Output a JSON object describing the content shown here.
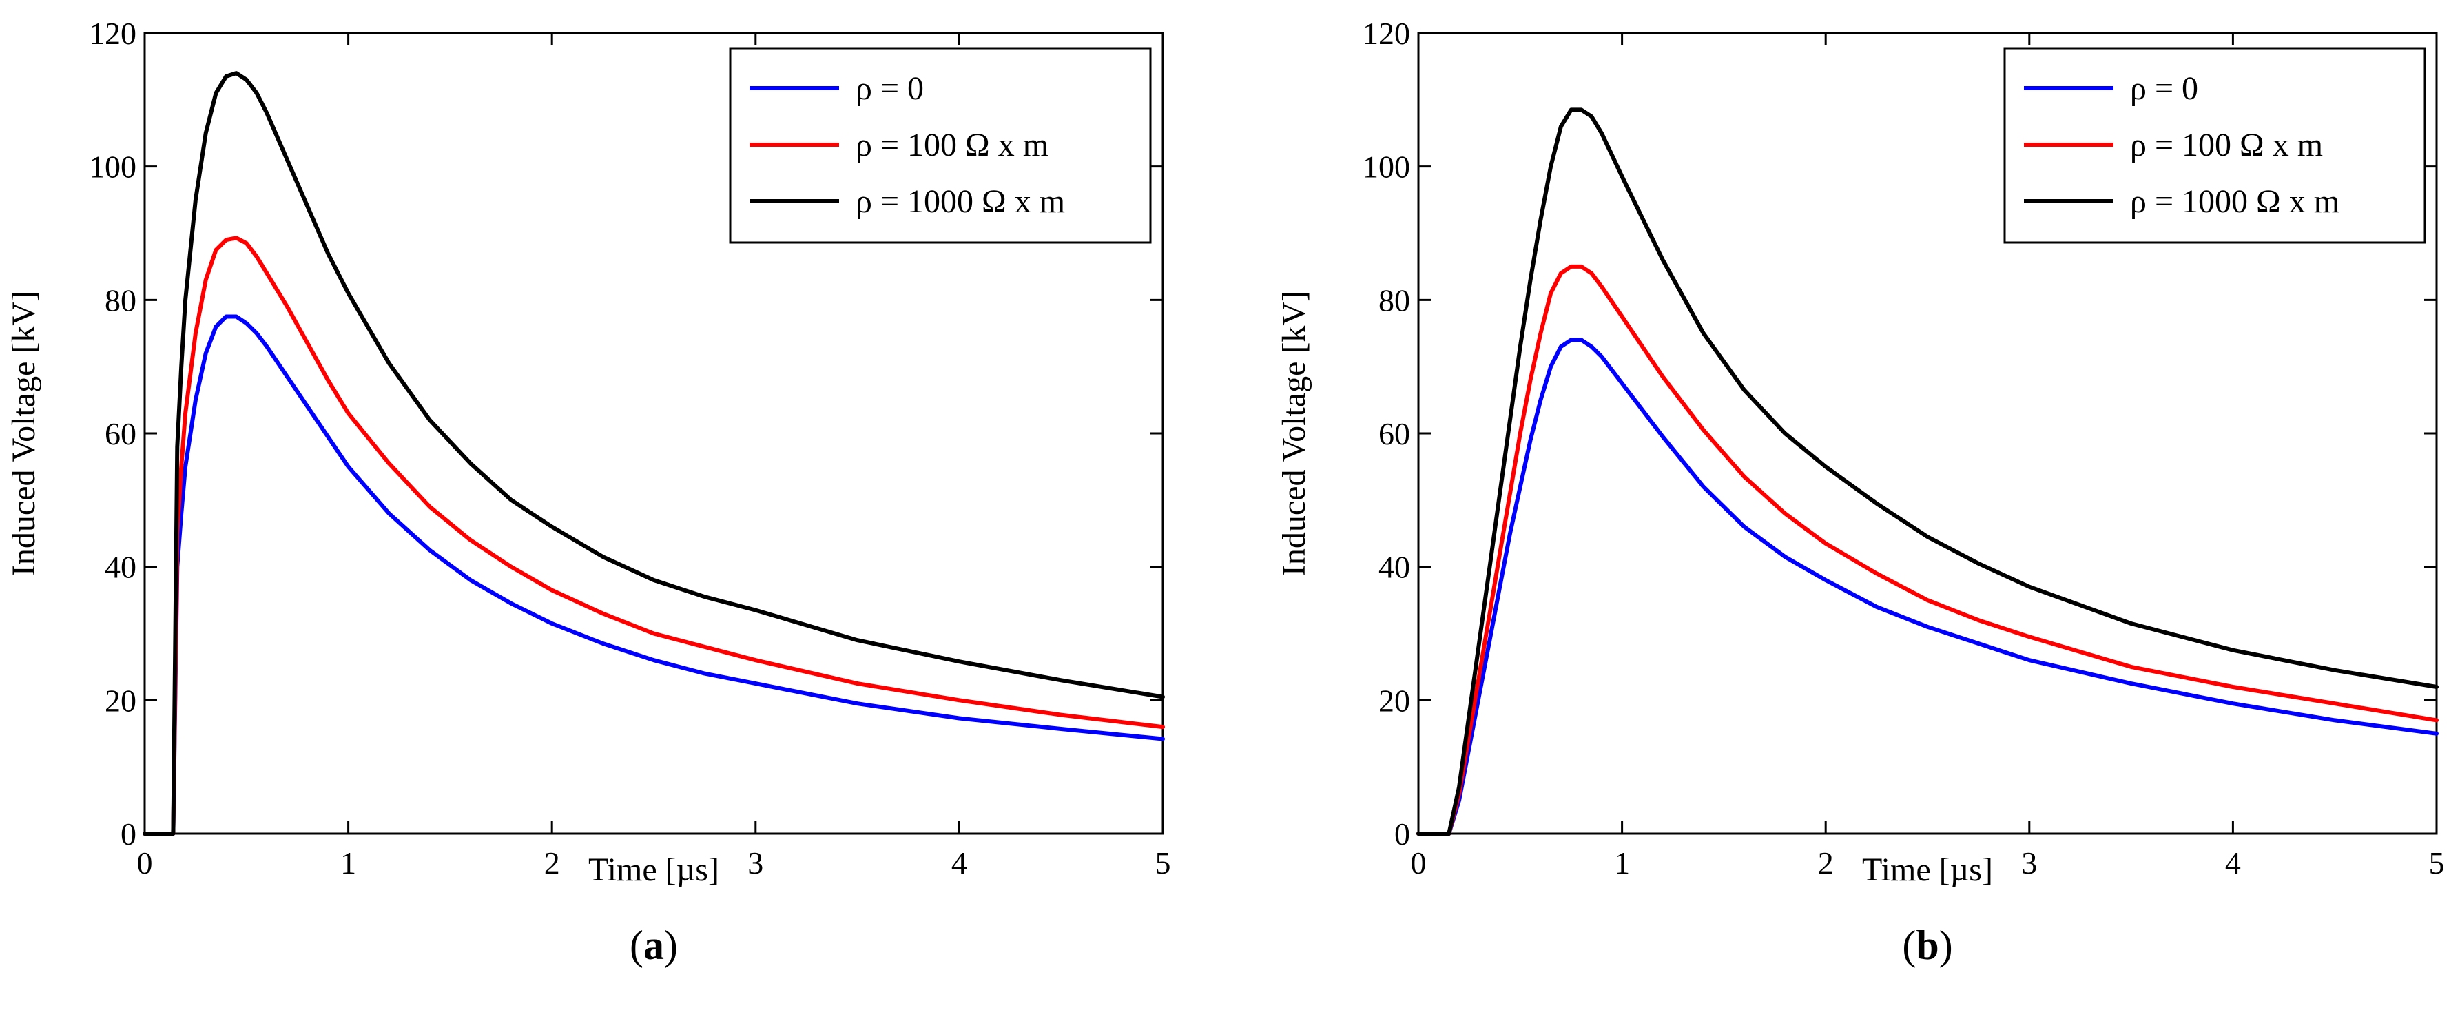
{
  "chart_data": [
    {
      "type": "line",
      "panel_label": "a",
      "xlabel": "Time [µs]",
      "ylabel": "Induced Voltage [kV]",
      "xlim": [
        0,
        5
      ],
      "ylim": [
        0,
        120
      ],
      "xticks": [
        0,
        1,
        2,
        3,
        4,
        5
      ],
      "yticks": [
        0,
        20,
        40,
        60,
        80,
        100,
        120
      ],
      "grid": false,
      "legend_position": "top-right",
      "series": [
        {
          "name": "ρ = 0",
          "color": "#0000ff",
          "x": [
            0,
            0.14,
            0.15,
            0.16,
            0.18,
            0.2,
            0.25,
            0.3,
            0.35,
            0.4,
            0.45,
            0.5,
            0.55,
            0.6,
            0.7,
            0.8,
            0.9,
            1.0,
            1.2,
            1.4,
            1.6,
            1.8,
            2.0,
            2.25,
            2.5,
            2.75,
            3.0,
            3.5,
            4.0,
            4.5,
            5.0
          ],
          "y": [
            0,
            0,
            20,
            40,
            48,
            55,
            65,
            72,
            76,
            77.5,
            77.5,
            76.5,
            75,
            73,
            68.5,
            64,
            59.5,
            55,
            48,
            42.5,
            38,
            34.5,
            31.5,
            28.5,
            26,
            24,
            22.5,
            19.5,
            17.3,
            15.7,
            14.2
          ]
        },
        {
          "name": "ρ = 100 Ω x m",
          "color": "#ff0000",
          "x": [
            0,
            0.14,
            0.15,
            0.16,
            0.18,
            0.2,
            0.25,
            0.3,
            0.35,
            0.4,
            0.45,
            0.5,
            0.55,
            0.6,
            0.7,
            0.8,
            0.9,
            1.0,
            1.2,
            1.4,
            1.6,
            1.8,
            2.0,
            2.25,
            2.5,
            2.75,
            3.0,
            3.5,
            4.0,
            4.5,
            5.0
          ],
          "y": [
            0,
            0,
            22,
            45,
            55,
            63,
            75,
            83,
            87.5,
            89,
            89.3,
            88.5,
            86.5,
            84,
            79,
            73.5,
            68,
            63,
            55.5,
            49,
            44,
            40,
            36.5,
            33,
            30,
            28,
            26,
            22.5,
            20,
            17.8,
            16
          ]
        },
        {
          "name": "ρ = 1000 Ω x m",
          "color": "#000000",
          "x": [
            0,
            0.14,
            0.15,
            0.16,
            0.18,
            0.2,
            0.25,
            0.3,
            0.35,
            0.4,
            0.45,
            0.5,
            0.55,
            0.6,
            0.7,
            0.8,
            0.9,
            1.0,
            1.2,
            1.4,
            1.6,
            1.8,
            2.0,
            2.25,
            2.5,
            2.75,
            3.0,
            3.5,
            4.0,
            4.5,
            5.0
          ],
          "y": [
            0,
            0,
            28,
            58,
            70,
            80,
            95,
            105,
            111,
            113.5,
            114,
            113,
            111,
            108,
            101,
            94,
            87,
            81,
            70.5,
            62,
            55.5,
            50,
            46,
            41.5,
            38,
            35.5,
            33.5,
            29,
            25.8,
            23,
            20.5
          ]
        }
      ]
    },
    {
      "type": "line",
      "panel_label": "b",
      "xlabel": "Time [µs]",
      "ylabel": "Induced Voltage [kV]",
      "xlim": [
        0,
        5
      ],
      "ylim": [
        0,
        120
      ],
      "xticks": [
        0,
        1,
        2,
        3,
        4,
        5
      ],
      "yticks": [
        0,
        20,
        40,
        60,
        80,
        100,
        120
      ],
      "grid": false,
      "legend_position": "top-right",
      "series": [
        {
          "name": "ρ = 0",
          "color": "#0000ff",
          "x": [
            0,
            0.15,
            0.2,
            0.25,
            0.3,
            0.35,
            0.4,
            0.45,
            0.5,
            0.55,
            0.6,
            0.65,
            0.7,
            0.75,
            0.8,
            0.85,
            0.9,
            1.0,
            1.2,
            1.4,
            1.6,
            1.8,
            2.0,
            2.25,
            2.5,
            2.75,
            3.0,
            3.5,
            4.0,
            4.5,
            5.0
          ],
          "y": [
            0,
            0,
            5,
            13,
            21,
            29,
            37,
            45,
            52,
            59,
            65,
            70,
            73,
            74,
            74,
            73,
            71.5,
            67.5,
            59.5,
            52,
            46,
            41.5,
            38,
            34,
            31,
            28.5,
            26,
            22.5,
            19.5,
            17,
            15
          ]
        },
        {
          "name": "ρ = 100 Ω x m",
          "color": "#ff0000",
          "x": [
            0,
            0.15,
            0.2,
            0.25,
            0.3,
            0.35,
            0.4,
            0.45,
            0.5,
            0.55,
            0.6,
            0.65,
            0.7,
            0.75,
            0.8,
            0.85,
            0.9,
            1.0,
            1.2,
            1.4,
            1.6,
            1.8,
            2.0,
            2.25,
            2.5,
            2.75,
            3.0,
            3.5,
            4.0,
            4.5,
            5.0
          ],
          "y": [
            0,
            0,
            6,
            15,
            24,
            33,
            42,
            51,
            60,
            68,
            75,
            81,
            84,
            85,
            85,
            84,
            82,
            77.5,
            68.5,
            60.5,
            53.5,
            48,
            43.5,
            39,
            35,
            32,
            29.5,
            25,
            22,
            19.5,
            17
          ]
        },
        {
          "name": "ρ = 1000 Ω x m",
          "color": "#000000",
          "x": [
            0,
            0.15,
            0.2,
            0.25,
            0.3,
            0.35,
            0.4,
            0.45,
            0.5,
            0.55,
            0.6,
            0.65,
            0.7,
            0.75,
            0.8,
            0.85,
            0.9,
            1.0,
            1.2,
            1.4,
            1.6,
            1.8,
            2.0,
            2.25,
            2.5,
            2.75,
            3.0,
            3.5,
            4.0,
            4.5,
            5.0
          ],
          "y": [
            0,
            0,
            7,
            18,
            29,
            40,
            51,
            62,
            73,
            83,
            92,
            100,
            106,
            108.5,
            108.5,
            107.5,
            105,
            98.5,
            86,
            75,
            66.5,
            60,
            55,
            49.5,
            44.5,
            40.5,
            37,
            31.5,
            27.5,
            24.5,
            22
          ]
        }
      ]
    }
  ]
}
